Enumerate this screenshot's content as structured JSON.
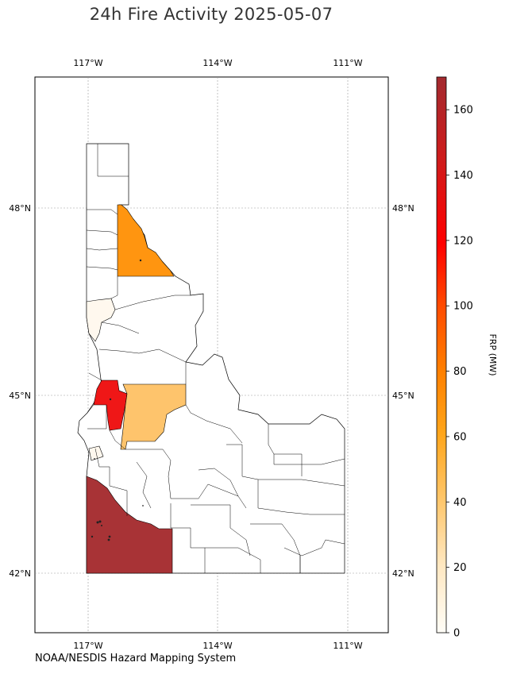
{
  "title": "24h Fire Activity 2025-05-07",
  "credit": "NOAA/NESDIS Hazard Mapping System",
  "map": {
    "lon_ticks": [
      "117°W",
      "114°W",
      "111°W"
    ],
    "lat_ticks_left": [
      "48°N",
      "45°N",
      "42°N"
    ],
    "lat_ticks_right": [
      "48°N",
      "45°N",
      "42°N"
    ],
    "extent": {
      "lon_min": -118.2,
      "lon_max": -110.05,
      "lat_min": 41.05,
      "lat_max": 49.9
    }
  },
  "colorbar": {
    "label": "FRP (MW)",
    "min": 0,
    "max": 170,
    "ticks": [
      "0",
      "20",
      "40",
      "60",
      "80",
      "100",
      "120",
      "140",
      "160"
    ],
    "colors": [
      "#fffdf7",
      "#ffe8c2",
      "#ffc66a",
      "#ffa51a",
      "#ff8000",
      "#ff4a00",
      "#ff0000",
      "#cf1b1b",
      "#a32a2f"
    ]
  },
  "chart_data": {
    "type": "choropleth",
    "title": "24h Fire Activity 2025-05-07",
    "value_label": "FRP (MW)",
    "regions": [
      {
        "id": "bonner",
        "value": 60,
        "color": "#ff9510"
      },
      {
        "id": "adams",
        "value": 34,
        "color": "#fec46c"
      },
      {
        "id": "idaho-west",
        "value": 122,
        "color": "#ef1717"
      },
      {
        "id": "owyhee",
        "value": 166,
        "color": "#a83336"
      },
      {
        "id": "latah",
        "value": 2,
        "color": "#fff8ee"
      },
      {
        "id": "payette",
        "value": 2,
        "color": "#fff8ee"
      }
    ]
  }
}
